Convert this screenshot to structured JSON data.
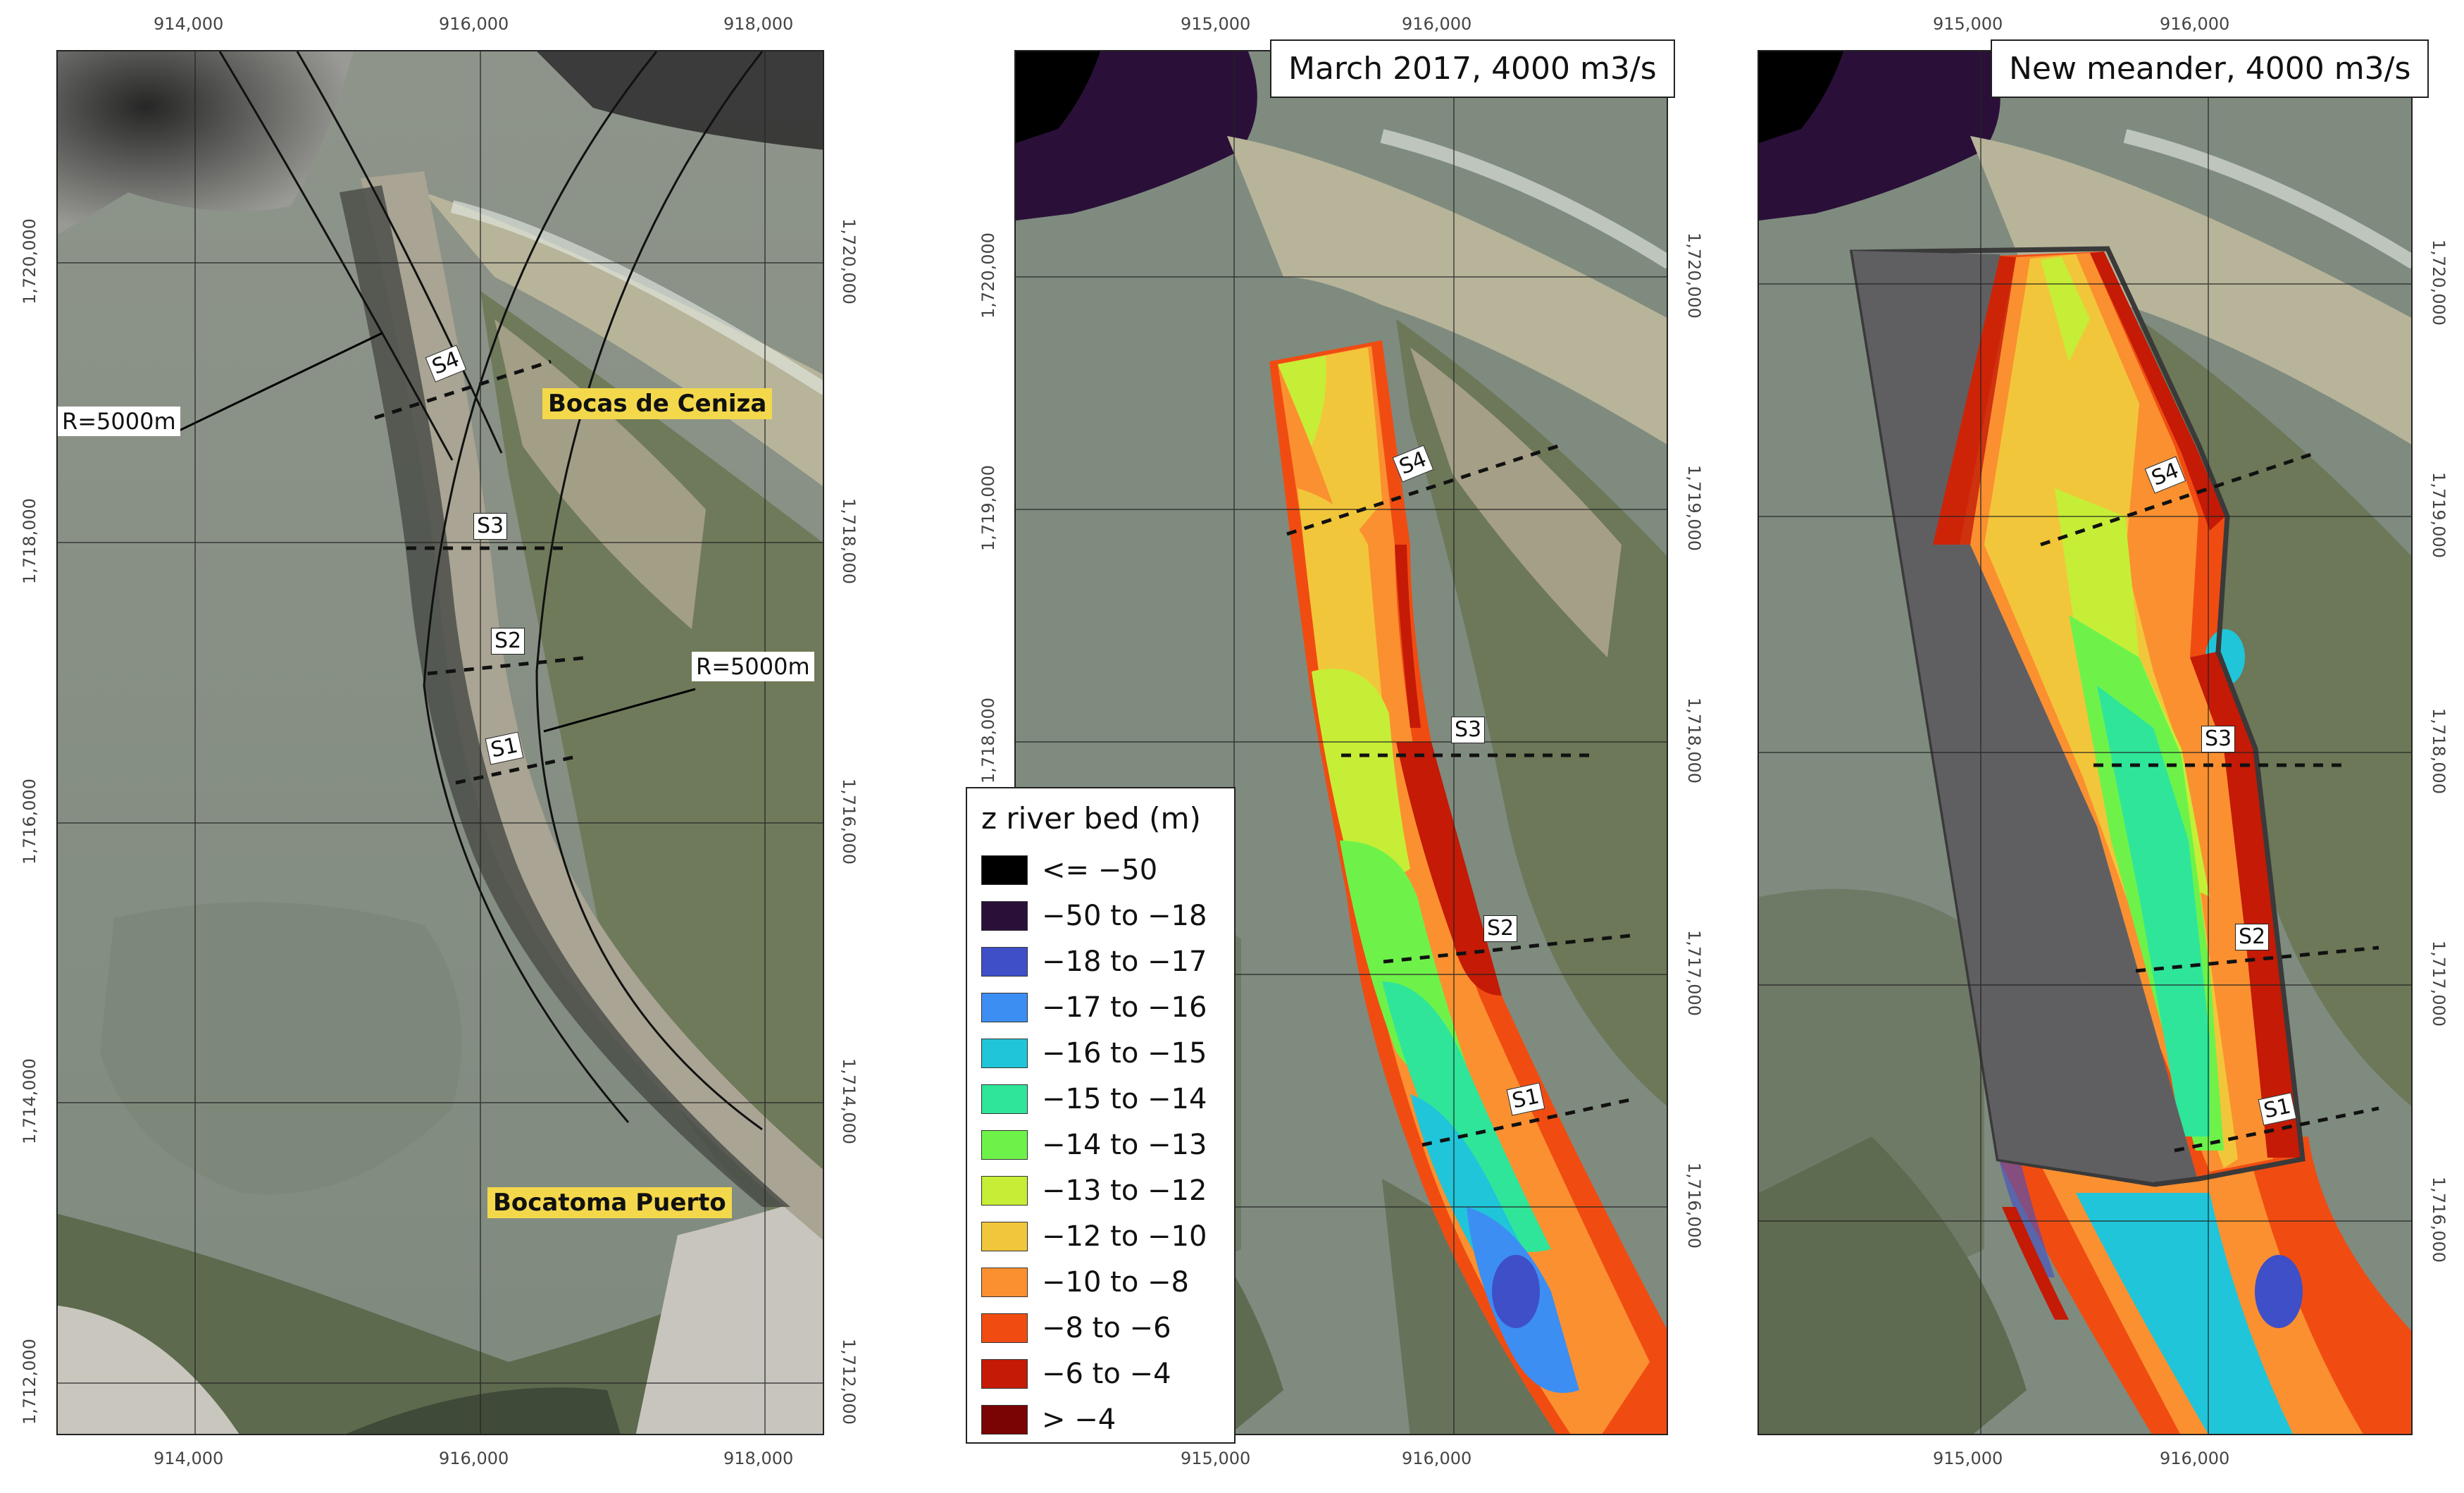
{
  "panels": {
    "left": {
      "x_ticks": [
        "914,000",
        "916,000",
        "918,000"
      ],
      "y_ticks": [
        "1,720,000",
        "1,718,000",
        "1,716,000",
        "1,714,000",
        "1,712,000"
      ],
      "sections": [
        "S4",
        "S3",
        "S2",
        "S1"
      ],
      "places": [
        "Bocas de Ceniza",
        "Bocatoma Puerto"
      ],
      "radius_labels": [
        "R=5000m",
        "R=5000m"
      ]
    },
    "middle": {
      "title": "March 2017, 4000 m3/s",
      "x_ticks": [
        "915,000",
        "916,000"
      ],
      "y_ticks": [
        "1,720,000",
        "1,719,000",
        "1,718,000",
        "1,717,000",
        "1,716,000"
      ],
      "sections": [
        "S4",
        "S3",
        "S2",
        "S1"
      ]
    },
    "right": {
      "title": "New meander, 4000 m3/s",
      "x_ticks": [
        "915,000",
        "916,000"
      ],
      "y_ticks": [
        "1,720,000",
        "1,719,000",
        "1,718,000",
        "1,717,000",
        "1,716,000"
      ],
      "sections": [
        "S4",
        "S3",
        "S2",
        "S1"
      ]
    }
  },
  "legend": {
    "title": "z river bed (m)",
    "items": [
      {
        "label": "<= −50",
        "color": "#000000"
      },
      {
        "label": "−50 to −18",
        "color": "#2a1038"
      },
      {
        "label": "−18 to −17",
        "color": "#3f4fc8"
      },
      {
        "label": "−17 to −16",
        "color": "#3d8ef2"
      },
      {
        "label": "−16 to −15",
        "color": "#20c5d9"
      },
      {
        "label": "−15 to −14",
        "color": "#2fe59a"
      },
      {
        "label": "−14 to −13",
        "color": "#6ef24a"
      },
      {
        "label": "−13 to −12",
        "color": "#c6ee36"
      },
      {
        "label": "−12 to −10",
        "color": "#f2c63a"
      },
      {
        "label": "−10 to −8",
        "color": "#fb9030"
      },
      {
        "label": "−8 to −6",
        "color": "#f04c12"
      },
      {
        "label": "−6 to −4",
        "color": "#c41a06"
      },
      {
        "label": "> −4",
        "color": "#7a0303"
      }
    ]
  }
}
